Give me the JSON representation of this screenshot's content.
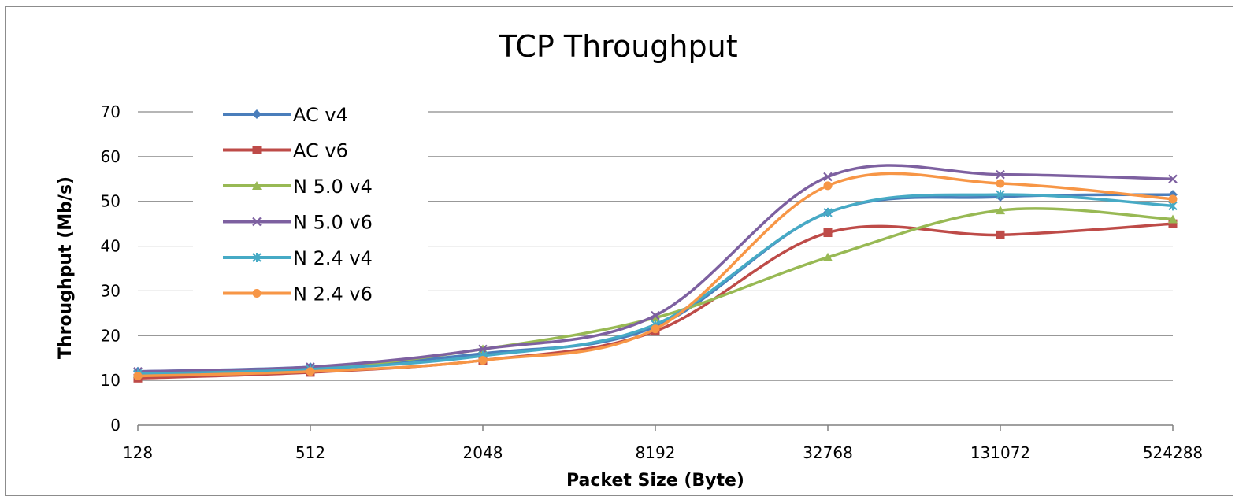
{
  "chart_data": {
    "type": "line",
    "title": "TCP Throughput",
    "xlabel": "Packet Size (Byte)",
    "ylabel": "Throughput (Mb/s)",
    "categories": [
      "128",
      "512",
      "2048",
      "8192",
      "32768",
      "131072",
      "524288"
    ],
    "ylim": [
      0,
      70
    ],
    "yticks": [
      0,
      10,
      20,
      30,
      40,
      50,
      60,
      70
    ],
    "grid": "horizontal",
    "legend": "top-left",
    "series": [
      {
        "name": "AC v4",
        "color": "#4a7ebb",
        "marker": "diamond",
        "values": [
          12,
          13,
          16,
          22,
          47.5,
          51,
          51.5
        ]
      },
      {
        "name": "AC v6",
        "color": "#be4b48",
        "marker": "square",
        "values": [
          10.5,
          11.8,
          14.5,
          21,
          43,
          42.5,
          45
        ]
      },
      {
        "name": "N 5.0 v4",
        "color": "#98b954",
        "marker": "triangle",
        "values": [
          11.5,
          12.5,
          17,
          24,
          37.5,
          48,
          46
        ]
      },
      {
        "name": "N 5.0 v6",
        "color": "#7d60a0",
        "marker": "x",
        "values": [
          12,
          13,
          17,
          24.5,
          55.5,
          56,
          55
        ]
      },
      {
        "name": "N 2.4 v4",
        "color": "#46aac5",
        "marker": "star",
        "values": [
          11.5,
          12.5,
          15.5,
          22.5,
          47.5,
          51.5,
          49
        ]
      },
      {
        "name": "N 2.4 v6",
        "color": "#f79646",
        "marker": "circle",
        "values": [
          11,
          12,
          14.5,
          21.5,
          53.5,
          54,
          50.5
        ]
      }
    ]
  }
}
